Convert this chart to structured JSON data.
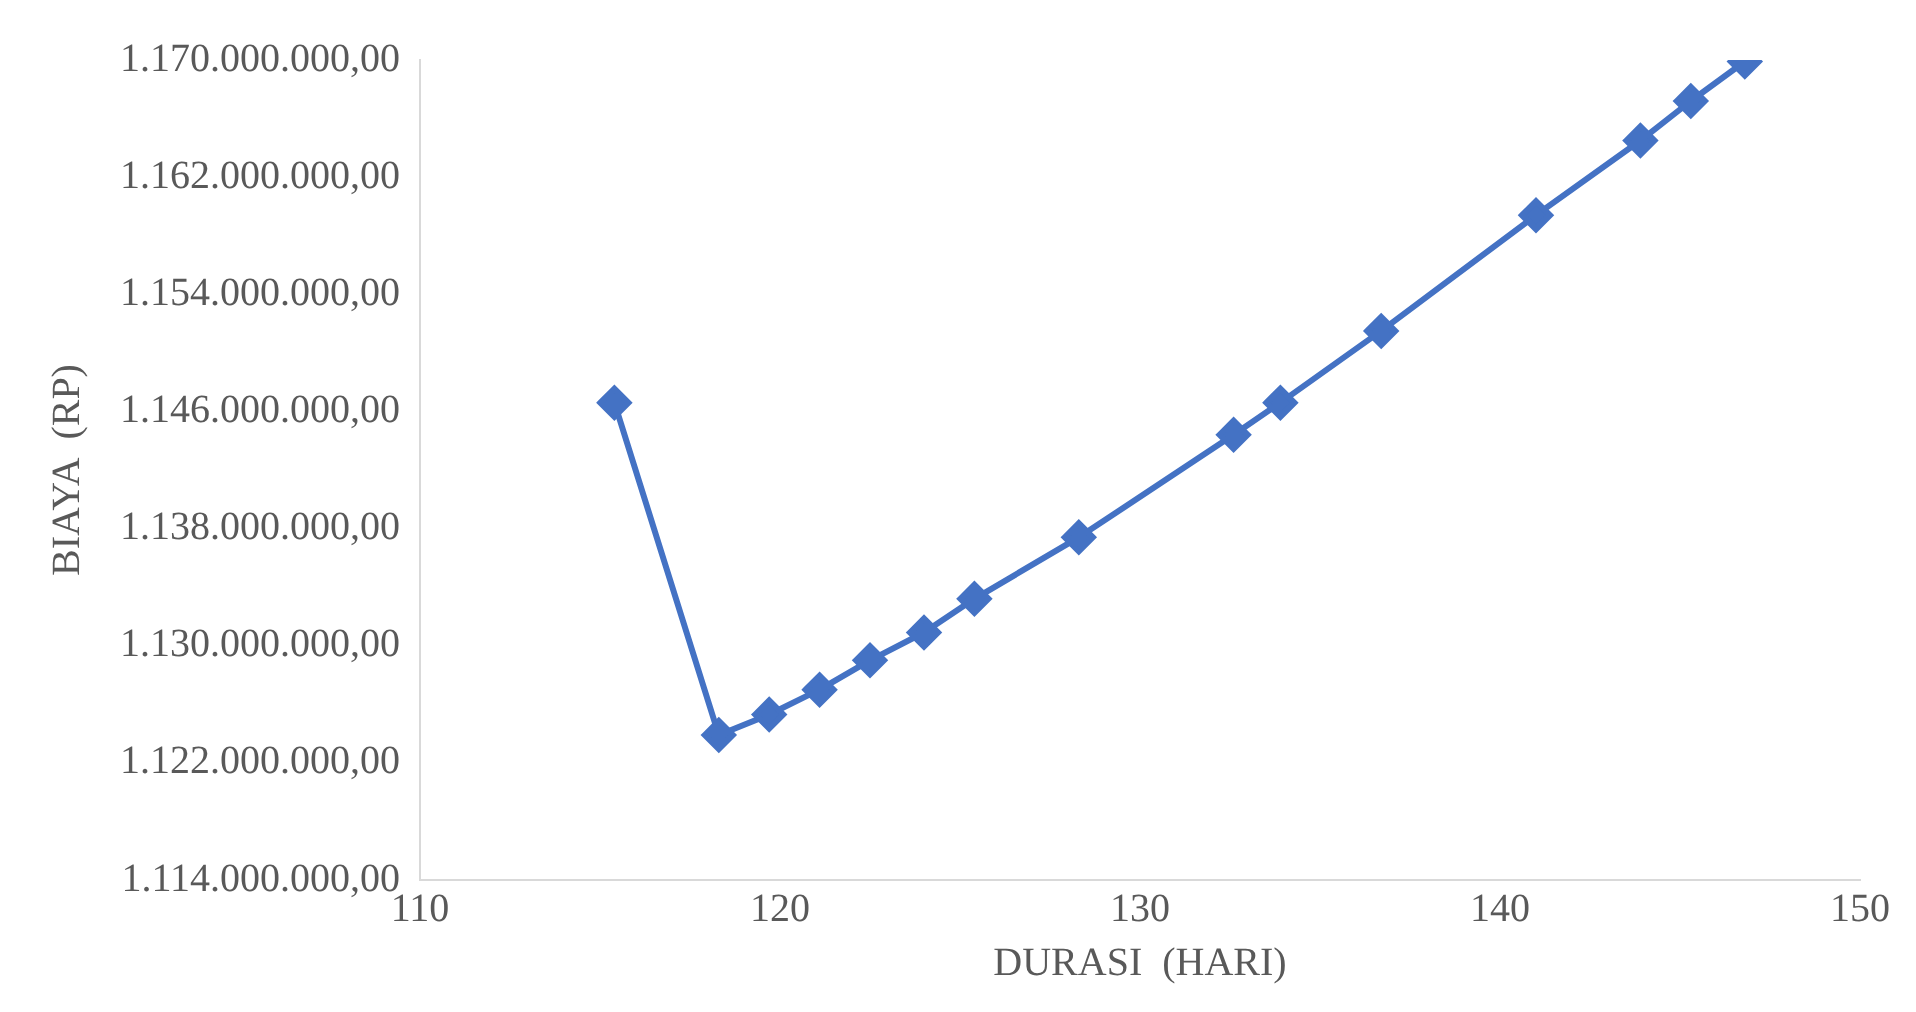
{
  "chart_data": {
    "type": "line",
    "xlabel": "DURASI  (HARI)",
    "ylabel": "BIAYA  (RP)",
    "x": [
      115.4,
      118.3,
      119.7,
      121.1,
      122.5,
      124.0,
      125.4,
      128.3,
      132.6,
      133.9,
      136.7,
      141.0,
      143.9,
      145.3,
      146.8
    ],
    "series": [
      {
        "color": "#4472c4",
        "values": [
          1146600000,
          1123900000,
          1125300000,
          1127000000,
          1129000000,
          1130900000,
          1133200000,
          1137400000,
          1144400000,
          1146600000,
          1151500000,
          1159400000,
          1164500000,
          1167200000,
          1169900000
        ]
      }
    ],
    "xlim": [
      110,
      150
    ],
    "xticks": [
      110,
      120,
      130,
      140,
      150
    ],
    "ylim": [
      1114000000,
      1170000000
    ],
    "yticks": [
      {
        "value": 1114000000,
        "label": "1.114.000.000,00"
      },
      {
        "value": 1122000000,
        "label": "1.122.000.000,00"
      },
      {
        "value": 1130000000,
        "label": "1.130.000.000,00"
      },
      {
        "value": 1138000000,
        "label": "1.138.000.000,00"
      },
      {
        "value": 1146000000,
        "label": "1.146.000.000,00"
      },
      {
        "value": 1154000000,
        "label": "1.154.000.000,00"
      },
      {
        "value": 1162000000,
        "label": "1.162.000.000,00"
      },
      {
        "value": 1170000000,
        "label": "1.170.000.000,00"
      }
    ],
    "grid": false,
    "legend": false,
    "marker": "diamond",
    "line_style": "solid"
  }
}
